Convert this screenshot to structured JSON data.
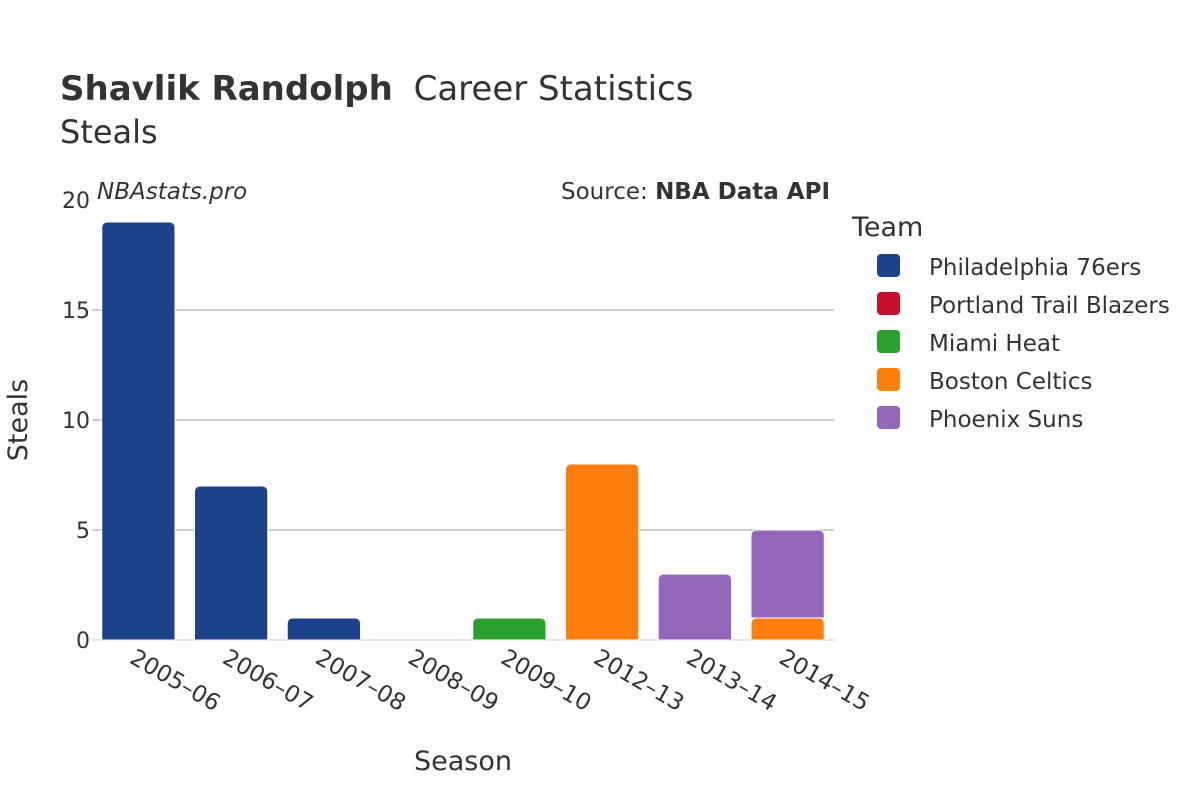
{
  "header": {
    "player_name": "Shavlik Randolph",
    "title_rest": "Career Statistics",
    "subtitle": "Steals",
    "watermark": "NBAstats.pro",
    "source_prefix": "Source: ",
    "source_name": "NBA Data API"
  },
  "colors": {
    "Philadelphia 76ers": "#1d428a",
    "Portland Trail Blazers": "#c8102e",
    "Miami Heat": "#2ca02c",
    "Boston Celtics": "#ff7f0e",
    "Phoenix Suns": "#9467bd",
    "grid": "#b0b0b0",
    "text": "#333333"
  },
  "chart_data": {
    "type": "bar",
    "stacked": true,
    "xlabel": "Season",
    "ylabel": "Steals",
    "ylim": [
      0,
      20
    ],
    "yticks": [
      0,
      5,
      10,
      15,
      20
    ],
    "categories": [
      "2005–06",
      "2006–07",
      "2007–08",
      "2008–09",
      "2009–10",
      "2012–13",
      "2013–14",
      "2014–15"
    ],
    "legend_title": "Team",
    "legend_position": "right",
    "series": [
      {
        "name": "Philadelphia 76ers",
        "values": [
          19,
          7,
          1,
          0,
          0,
          0,
          0,
          0
        ]
      },
      {
        "name": "Portland Trail Blazers",
        "values": [
          0,
          0,
          0,
          0,
          0,
          0,
          0,
          0
        ]
      },
      {
        "name": "Miami Heat",
        "values": [
          0,
          0,
          0,
          0,
          1,
          0,
          0,
          0
        ]
      },
      {
        "name": "Boston Celtics",
        "values": [
          0,
          0,
          0,
          0,
          0,
          8,
          0,
          1
        ]
      },
      {
        "name": "Phoenix Suns",
        "values": [
          0,
          0,
          0,
          0,
          0,
          0,
          3,
          4
        ]
      }
    ]
  }
}
